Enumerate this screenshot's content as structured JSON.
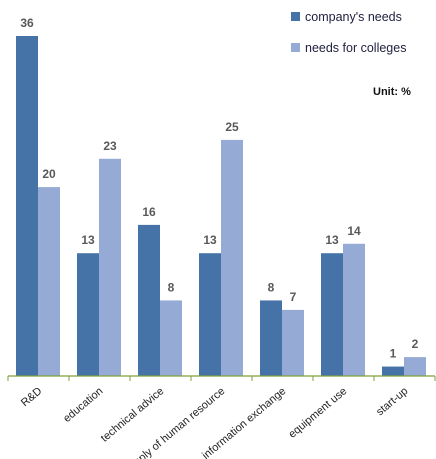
{
  "chart_data": {
    "type": "bar",
    "categories": [
      "R&D",
      "education",
      "technical advice",
      "supply of human resource",
      "information exchange",
      "equipment use",
      "start-up"
    ],
    "series": [
      {
        "name": "company's needs",
        "values": [
          36,
          13,
          16,
          13,
          8,
          13,
          1
        ],
        "color": "#4572a7"
      },
      {
        "name": "needs for colleges",
        "values": [
          20,
          23,
          8,
          25,
          7,
          14,
          2
        ],
        "color": "#95abd5"
      }
    ],
    "ylim": [
      0,
      36
    ],
    "grid": false,
    "legend_position": "top-right",
    "unit_label": "Unit: %",
    "axis_color": "#7f9f3f"
  }
}
